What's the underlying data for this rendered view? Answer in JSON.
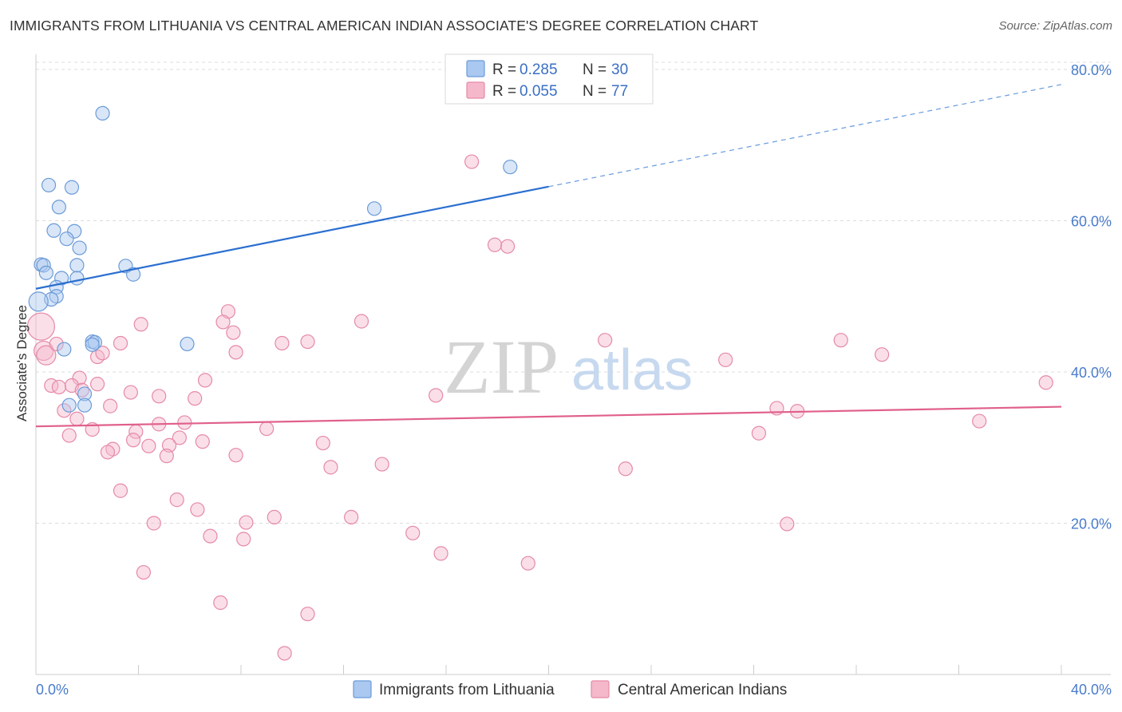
{
  "header": {
    "title": "IMMIGRANTS FROM LITHUANIA VS CENTRAL AMERICAN INDIAN ASSOCIATE'S DEGREE CORRELATION CHART",
    "source": "Source: ZipAtlas.com"
  },
  "watermark": {
    "zip": "ZIP",
    "atlas": "atlas"
  },
  "legend": {
    "r_label": "R =",
    "n_label": "N =",
    "items": [
      {
        "r": "0.285",
        "n": "30"
      },
      {
        "r": "0.055",
        "n": "77"
      }
    ]
  },
  "colors": {
    "blue_fill": "#aac8f0",
    "blue_stroke": "#6a9bd8",
    "blue_line": "#2a6fd0",
    "pink_fill": "#f5b8cb",
    "pink_stroke": "#e68aa6",
    "pink_line": "#e0608a",
    "grid": "#dddddd",
    "tick_text": "#4a7ccc"
  },
  "chart_data": {
    "type": "scatter",
    "title": "IMMIGRANTS FROM LITHUANIA VS CENTRAL AMERICAN INDIAN ASSOCIATE'S DEGREE CORRELATION CHART",
    "xlabel": "",
    "ylabel": "Associate's Degree",
    "xlim": [
      0,
      40
    ],
    "ylim": [
      0,
      82
    ],
    "x_ticks": [
      {
        "value": 0,
        "label": "0.0%"
      },
      {
        "value": 40,
        "label": "40.0%"
      }
    ],
    "y_ticks": [
      {
        "value": 20,
        "label": "20.0%"
      },
      {
        "value": 40,
        "label": "40.0%"
      },
      {
        "value": 60,
        "label": "60.0%"
      },
      {
        "value": 80,
        "label": "80.0%"
      }
    ],
    "grid": true,
    "legend_position": "top-center",
    "series": [
      {
        "name": "Immigrants from Lithuania",
        "r": 0.285,
        "n": 30,
        "trend": {
          "x0": 0,
          "y0": 51.0,
          "x1": 20,
          "y1": 64.5,
          "x_dash_end": 40,
          "y_dash_end": 78.0
        },
        "points": [
          [
            2.6,
            74.2
          ],
          [
            0.5,
            64.7
          ],
          [
            1.4,
            64.4
          ],
          [
            0.9,
            61.8
          ],
          [
            0.7,
            58.7
          ],
          [
            1.5,
            58.6
          ],
          [
            1.2,
            57.6
          ],
          [
            1.7,
            56.4
          ],
          [
            0.2,
            54.2
          ],
          [
            0.3,
            54.1
          ],
          [
            1.6,
            54.1
          ],
          [
            3.5,
            54.0
          ],
          [
            0.4,
            53.1
          ],
          [
            3.8,
            52.9
          ],
          [
            1.0,
            52.4
          ],
          [
            1.6,
            52.4
          ],
          [
            0.8,
            51.2
          ],
          [
            0.8,
            50.0
          ],
          [
            0.6,
            49.6
          ],
          [
            0.1,
            49.3
          ],
          [
            2.2,
            44.0
          ],
          [
            2.3,
            43.9
          ],
          [
            5.9,
            43.7
          ],
          [
            2.2,
            43.6
          ],
          [
            1.1,
            43.0
          ],
          [
            1.9,
            37.1
          ],
          [
            1.3,
            35.6
          ],
          [
            1.9,
            35.6
          ],
          [
            13.2,
            61.6
          ],
          [
            18.5,
            67.1
          ]
        ]
      },
      {
        "name": "Central American Indians",
        "r": 0.055,
        "n": 77,
        "trend": {
          "x0": 0,
          "y0": 32.8,
          "x1": 40,
          "y1": 35.4
        },
        "points": [
          [
            17.0,
            67.8
          ],
          [
            17.9,
            56.8
          ],
          [
            18.4,
            56.6
          ],
          [
            7.5,
            48.0
          ],
          [
            12.7,
            46.7
          ],
          [
            4.1,
            46.3
          ],
          [
            7.3,
            46.6
          ],
          [
            0.2,
            46.0
          ],
          [
            7.7,
            45.2
          ],
          [
            9.6,
            43.8
          ],
          [
            10.6,
            44.0
          ],
          [
            22.2,
            44.2
          ],
          [
            31.4,
            44.2
          ],
          [
            3.3,
            43.8
          ],
          [
            7.8,
            42.6
          ],
          [
            0.3,
            42.8
          ],
          [
            0.4,
            42.2
          ],
          [
            2.4,
            42.0
          ],
          [
            2.6,
            42.5
          ],
          [
            26.9,
            41.6
          ],
          [
            33.0,
            42.3
          ],
          [
            1.7,
            39.2
          ],
          [
            6.6,
            38.9
          ],
          [
            2.4,
            38.4
          ],
          [
            0.6,
            38.2
          ],
          [
            1.4,
            38.2
          ],
          [
            0.9,
            38.0
          ],
          [
            1.8,
            37.6
          ],
          [
            3.7,
            37.3
          ],
          [
            4.8,
            36.8
          ],
          [
            6.2,
            36.5
          ],
          [
            15.6,
            36.9
          ],
          [
            2.9,
            35.5
          ],
          [
            1.1,
            34.9
          ],
          [
            28.9,
            35.2
          ],
          [
            29.7,
            34.8
          ],
          [
            1.6,
            33.8
          ],
          [
            4.8,
            33.1
          ],
          [
            5.8,
            33.3
          ],
          [
            36.8,
            33.5
          ],
          [
            9.0,
            32.5
          ],
          [
            2.2,
            32.4
          ],
          [
            3.9,
            32.1
          ],
          [
            1.3,
            31.6
          ],
          [
            5.6,
            31.3
          ],
          [
            28.2,
            31.9
          ],
          [
            3.8,
            31.0
          ],
          [
            6.5,
            30.8
          ],
          [
            4.4,
            30.2
          ],
          [
            5.2,
            30.3
          ],
          [
            11.2,
            30.6
          ],
          [
            3.0,
            29.8
          ],
          [
            2.8,
            29.4
          ],
          [
            5.1,
            28.9
          ],
          [
            7.8,
            29.0
          ],
          [
            11.5,
            27.4
          ],
          [
            13.5,
            27.8
          ],
          [
            23.0,
            27.2
          ],
          [
            3.3,
            24.3
          ],
          [
            5.5,
            23.1
          ],
          [
            6.3,
            21.8
          ],
          [
            9.3,
            20.8
          ],
          [
            12.3,
            20.8
          ],
          [
            4.6,
            20.0
          ],
          [
            8.2,
            20.1
          ],
          [
            29.3,
            19.9
          ],
          [
            6.8,
            18.3
          ],
          [
            8.1,
            17.9
          ],
          [
            14.7,
            18.7
          ],
          [
            15.8,
            16.0
          ],
          [
            19.2,
            14.7
          ],
          [
            4.2,
            13.5
          ],
          [
            7.2,
            9.5
          ],
          [
            10.6,
            8.0
          ],
          [
            9.7,
            2.8
          ],
          [
            39.4,
            38.6
          ],
          [
            0.8,
            43.7
          ]
        ]
      }
    ]
  }
}
